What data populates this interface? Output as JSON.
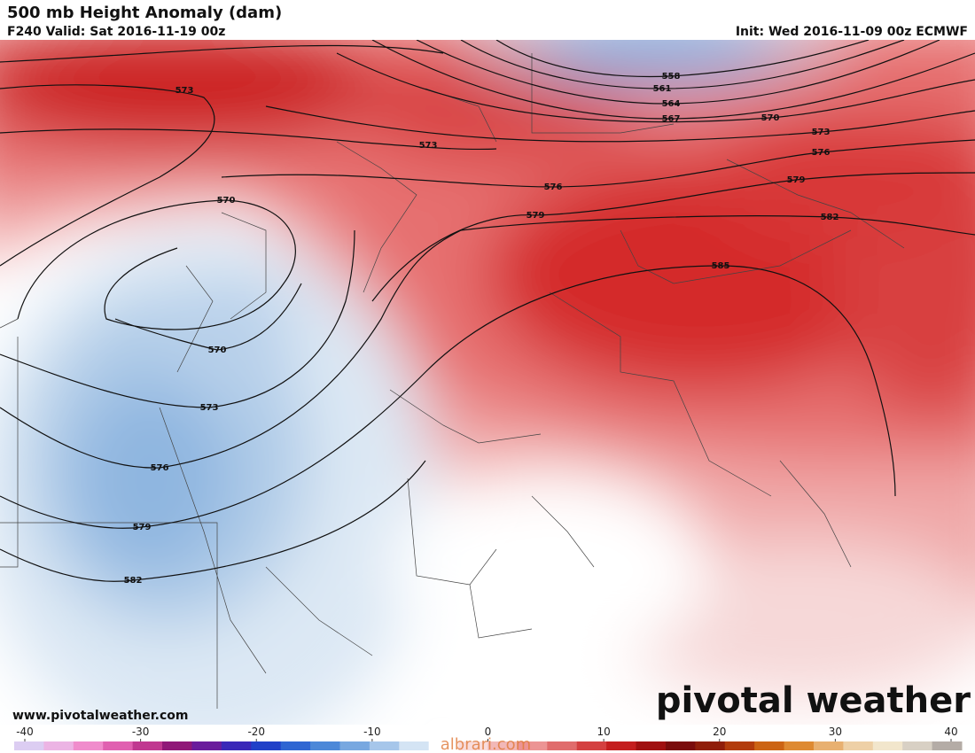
{
  "header": {
    "title": "500 mb Height Anomaly (dam)",
    "valid": "F240 Valid: Sat 2016-11-19 00z",
    "init": "Init: Wed 2016-11-09 00z ECMWF"
  },
  "contour_labels": [
    573,
    573,
    558,
    561,
    564,
    567,
    570,
    573,
    576,
    579,
    582,
    585,
    576,
    579,
    570,
    570,
    573,
    576,
    579,
    582
  ],
  "footer": {
    "website": "www.pivotalweather.com",
    "logo": "pivotal weather",
    "watermark": "albrari.com"
  },
  "colorbar": {
    "range": [
      -40,
      40
    ],
    "ticks": [
      -40,
      -30,
      -20,
      -10,
      0,
      10,
      20,
      30,
      40
    ],
    "colors": [
      "#dccdf2",
      "#ecb4e4",
      "#f08ccc",
      "#e060b0",
      "#c03890",
      "#901878",
      "#6a1c9c",
      "#3a28b8",
      "#2040c8",
      "#2f66d2",
      "#4c88d8",
      "#78a8e0",
      "#a6c6ea",
      "#d4e4f4",
      "#ffffff",
      "#f8dcdc",
      "#f2b8b8",
      "#ec9494",
      "#e06c6c",
      "#d44040",
      "#c41e1e",
      "#a01010",
      "#7a0c0c",
      "#901e0a",
      "#b23c0c",
      "#cc6414",
      "#de8a32",
      "#e8b070",
      "#eed0a6",
      "#f2e6cc",
      "#d8d0c4",
      "#b4aca6"
    ]
  }
}
